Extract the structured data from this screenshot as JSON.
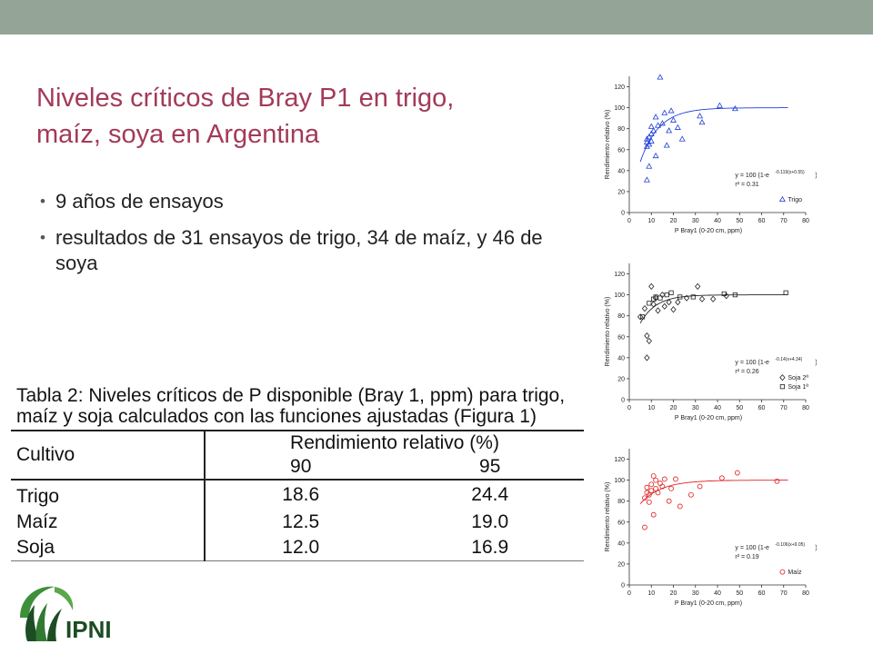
{
  "title": "Niveles críticos de Bray P1 en trigo, maíz, soya en Argentina",
  "bullets": [
    "9 años de ensayos",
    "resultados de 31 ensayos de trigo, 34 de maíz, y 46 de soya"
  ],
  "table": {
    "caption_line1": "Tabla 2: Niveles críticos de P disponible (Bray 1, ppm) para trigo,",
    "caption_line2": "maíz y soja calculados con las funciones ajustadas (Figura 1)",
    "col_header": "Cultivo",
    "group_header": "Rendimiento relativo (%)",
    "sub_headers": [
      "90",
      "95"
    ],
    "rows": [
      {
        "cultivo": "Trigo",
        "v90": "18.6",
        "v95": "24.4"
      },
      {
        "cultivo": "Maíz",
        "v90": "12.5",
        "v95": "19.0"
      },
      {
        "cultivo": "Soja",
        "v90": "12.0",
        "v95": "16.9"
      }
    ]
  },
  "logo": {
    "text": "IPNI",
    "colors": {
      "green": "#3d8f3a",
      "dark": "#1d4d23"
    }
  },
  "chart_data": [
    {
      "type": "scatter",
      "xlabel": "P Bray1 (0-20 cm, ppm)",
      "ylabel": "Rendimiento relativo (%)",
      "xlim": [
        0,
        80
      ],
      "ylim": [
        0,
        130
      ],
      "xticks": [
        0,
        10,
        20,
        30,
        40,
        50,
        60,
        70,
        80
      ],
      "yticks": [
        0,
        20,
        40,
        60,
        80,
        100,
        120
      ],
      "color": "#1f3fd8",
      "marker": "triangle",
      "equation": "y = 100 (1-e",
      "exponent": "-0.119(x+0.55)",
      "r2": "r² = 0.31",
      "fit": {
        "a": 0.119,
        "b": 0.55
      },
      "series": [
        {
          "name": "Trigo",
          "marker": "triangle",
          "points": [
            [
              8,
              31
            ],
            [
              9,
              44
            ],
            [
              8,
              63
            ],
            [
              8,
              67
            ],
            [
              8,
              70
            ],
            [
              9,
              72
            ],
            [
              9,
              65
            ],
            [
              10,
              75
            ],
            [
              10,
              68
            ],
            [
              11,
              78
            ],
            [
              10,
              82
            ],
            [
              12,
              54
            ],
            [
              12,
              91
            ],
            [
              13,
              83
            ],
            [
              14,
              129
            ],
            [
              15,
              85
            ],
            [
              16,
              95
            ],
            [
              17,
              64
            ],
            [
              18,
              78
            ],
            [
              19,
              97
            ],
            [
              20,
              88
            ],
            [
              22,
              81
            ],
            [
              24,
              70
            ],
            [
              32,
              92
            ],
            [
              33,
              86
            ],
            [
              41,
              102
            ],
            [
              48,
              99
            ]
          ]
        }
      ]
    },
    {
      "type": "scatter",
      "xlabel": "P Bray1 (0-20 cm, ppm)",
      "ylabel": "Rendimiento relativo (%)",
      "xlim": [
        0,
        80
      ],
      "ylim": [
        0,
        130
      ],
      "xticks": [
        0,
        10,
        20,
        30,
        40,
        50,
        60,
        70,
        80
      ],
      "yticks": [
        0,
        20,
        40,
        60,
        80,
        100,
        120
      ],
      "color": "#222222",
      "equation": "y = 100 (1-e",
      "exponent": "-0.14(x+4.34)",
      "r2": "r² = 0.26",
      "fit": {
        "a": 0.14,
        "b": 4.34
      },
      "series": [
        {
          "name": "Soja 2ª",
          "marker": "diamond",
          "points": [
            [
              5,
              79
            ],
            [
              7,
              87
            ],
            [
              8,
              40
            ],
            [
              8,
              61
            ],
            [
              9,
              56
            ],
            [
              10,
              108
            ],
            [
              11,
              91
            ],
            [
              12,
              97
            ],
            [
              13,
              85
            ],
            [
              15,
              100
            ],
            [
              16,
              89
            ],
            [
              18,
              93
            ],
            [
              20,
              86
            ],
            [
              22,
              93
            ],
            [
              26,
              97
            ],
            [
              31,
              108
            ],
            [
              33,
              96
            ],
            [
              38,
              96
            ],
            [
              44,
              99
            ]
          ]
        },
        {
          "name": "Soja 1ª",
          "marker": "square",
          "points": [
            [
              6,
              79
            ],
            [
              9,
              92
            ],
            [
              11,
              96
            ],
            [
              12,
              98
            ],
            [
              14,
              97
            ],
            [
              17,
              100
            ],
            [
              19,
              102
            ],
            [
              23,
              98
            ],
            [
              29,
              98
            ],
            [
              43,
              101
            ],
            [
              48,
              100
            ],
            [
              71,
              102
            ]
          ]
        }
      ]
    },
    {
      "type": "scatter",
      "xlabel": "P Bray1 (0-20 cm, ppm)",
      "ylabel": "Rendimiento relativo (%)",
      "xlim": [
        0,
        80
      ],
      "ylim": [
        0,
        130
      ],
      "xticks": [
        0,
        10,
        20,
        30,
        40,
        50,
        60,
        70,
        80
      ],
      "yticks": [
        0,
        20,
        40,
        60,
        80,
        100,
        120
      ],
      "color": "#e02020",
      "equation": "y = 100 (1-e",
      "exponent": "-0.106(x+9.05)",
      "r2": "r² = 0.19",
      "fit": {
        "a": 0.106,
        "b": 9.05
      },
      "series": [
        {
          "name": "Maíz",
          "marker": "circle",
          "points": [
            [
              7,
              55
            ],
            [
              7,
              83
            ],
            [
              8,
              88
            ],
            [
              8,
              93
            ],
            [
              9,
              79
            ],
            [
              9,
              86
            ],
            [
              10,
              90
            ],
            [
              10,
              96
            ],
            [
              11,
              67
            ],
            [
              11,
              104
            ],
            [
              12,
              92
            ],
            [
              12,
              100
            ],
            [
              13,
              88
            ],
            [
              14,
              97
            ],
            [
              15,
              94
            ],
            [
              16,
              101
            ],
            [
              18,
              80
            ],
            [
              19,
              92
            ],
            [
              21,
              101
            ],
            [
              23,
              75
            ],
            [
              28,
              86
            ],
            [
              32,
              94
            ],
            [
              42,
              102
            ],
            [
              49,
              107
            ],
            [
              67,
              99
            ]
          ]
        }
      ]
    }
  ]
}
